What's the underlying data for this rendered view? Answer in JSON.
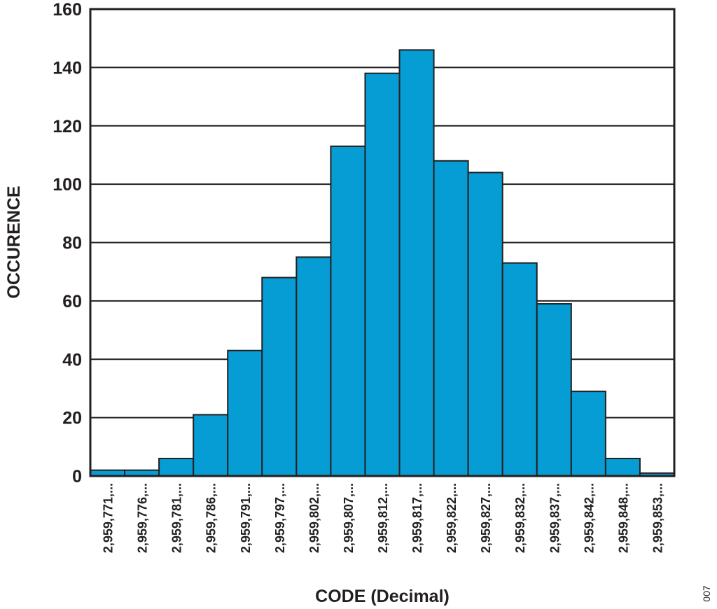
{
  "chart_data": {
    "type": "bar",
    "title": "",
    "xlabel": "CODE (Decimal)",
    "ylabel": "OCCURENCE",
    "ylim": [
      0,
      160
    ],
    "yticks": [
      0,
      20,
      40,
      60,
      80,
      100,
      120,
      140,
      160
    ],
    "ytick_labels": [
      "0",
      "20",
      "40",
      "60",
      "80",
      "100",
      "120",
      "140",
      "160"
    ],
    "grid": "horizontal",
    "categories": [
      "2,959,771,...",
      "2,959,776,...",
      "2,959,781,...",
      "2,959,786,...",
      "2,959,791,...",
      "2,959,797,...",
      "2,959,802,...",
      "2,959,807,...",
      "2,959,812,...",
      "2,959,817,...",
      "2,959,822,...",
      "2,959,827,...",
      "2,959,832,...",
      "2,959,837,...",
      "2,959,842,...",
      "2,959,848,...",
      "2,959,853,..."
    ],
    "values": [
      2,
      2,
      6,
      21,
      43,
      68,
      75,
      113,
      138,
      146,
      108,
      104,
      73,
      59,
      29,
      6,
      1
    ],
    "bar_color": "#069dd4",
    "edge_color": "#231f20"
  },
  "figure_id": "007"
}
